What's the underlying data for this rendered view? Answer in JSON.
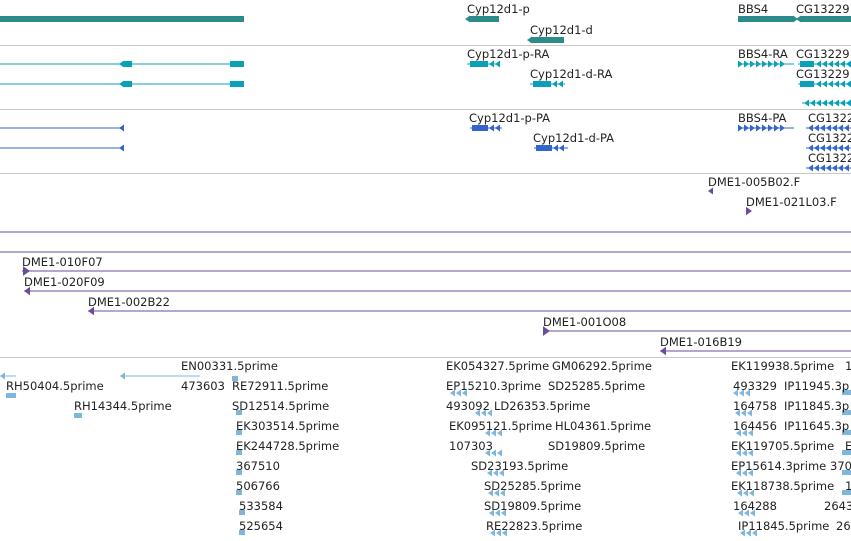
{
  "colors": {
    "gene": "#2e8b8b",
    "mrna": "#0aa0b8",
    "protein": "#3366cc",
    "clone": "#6a4c9c",
    "est": "#7fb7dc",
    "separator": "#c8c8c8"
  },
  "tracks": {
    "genes": [
      {
        "name": "Cyp12d1-p"
      },
      {
        "name": "Cyp12d1-d"
      },
      {
        "name": "BBS4"
      },
      {
        "name": "CG13229"
      }
    ],
    "mrnas": [
      {
        "name": "Cyp12d1-p-RA"
      },
      {
        "name": "Cyp12d1-d-RA"
      },
      {
        "name": "BBS4-RA"
      },
      {
        "name": "CG13229"
      },
      {
        "name": "CG13229"
      }
    ],
    "proteins": [
      {
        "name": "Cyp12d1-p-PA"
      },
      {
        "name": "Cyp12d1-d-PA"
      },
      {
        "name": "BBS4-PA"
      },
      {
        "name": "CG1322"
      },
      {
        "name": "CG1322"
      },
      {
        "name": "CG1322"
      }
    ],
    "clones_a": [
      {
        "name": "DME1-005B02.F"
      },
      {
        "name": "DME1-021L03.F"
      }
    ],
    "clones_b": [
      {
        "name": "DME1-010F07"
      },
      {
        "name": "DME1-020F09"
      },
      {
        "name": "DME1-002B22"
      },
      {
        "name": "DME1-001O08"
      },
      {
        "name": "DME1-016B19"
      }
    ],
    "ests": [
      "RH50404.5prime",
      "RH14344.5prime",
      "EN00331.5prime",
      "473603",
      "RE72911.5prime",
      "SD12514.5prime",
      "EK303514.5prime",
      "EK244728.5prime",
      "367510",
      "506766",
      "533584",
      "525654",
      "EK054327.5prime",
      "GM06292.5prime",
      "EP15210.3prime",
      "SD25285.5prime",
      "493092",
      "LD26353.5prime",
      "EK095121.5prime",
      "HL04361.5prime",
      "107303",
      "SD19809.5prime",
      "SD23193.5prime",
      "SD25285.5prime",
      "SD19809.5prime",
      "RE22823.5prime",
      "EK119938.5prime",
      "1",
      "493329",
      "IP11945.3p",
      "164758",
      "IP11845.3p",
      "164456",
      "IP11645.3p",
      "EK119705.5prime",
      "E",
      "EP15614.3prime",
      "370",
      "EK118738.5prime",
      "1",
      "164288",
      "2643",
      "IP11845.5prime",
      "26"
    ]
  }
}
